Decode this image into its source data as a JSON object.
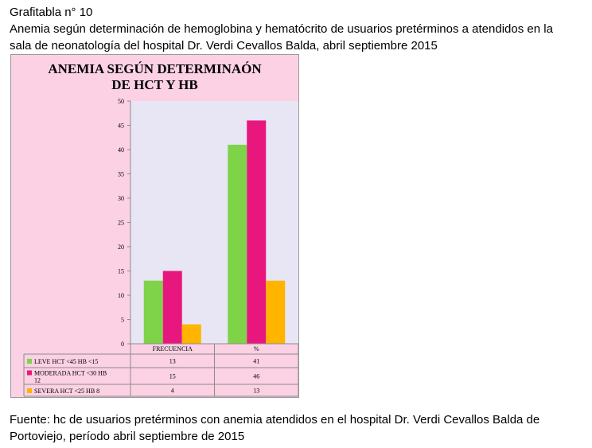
{
  "document": {
    "heading": "Grafitabla  n° 10",
    "caption_line1": "Anemia según determinación de  hemoglobina y hematócrito de usuarios pretérminos a atendidos en la",
    "caption_line2": "sala de neonatología del hospital Dr. Verdi Cevallos Balda, abril septiembre  2015",
    "source_line1": "Fuente: hc  de usuarios pretérminos con anemia atendidos en el hospital Dr. Verdi Cevallos Balda de",
    "source_line2": "Portoviejo, período abril septiembre de 2015"
  },
  "chart_data": {
    "type": "bar",
    "title_line1": "ANEMIA SEGÚN  DETERMINAÓN",
    "title_line2": "DE HCT Y HB",
    "categories": [
      "FRECUENCIA",
      "%"
    ],
    "series": [
      {
        "name": "LEVE HCT <45 HB <15",
        "legend_lines": [
          "LEVE HCT <45 HB <15"
        ],
        "values": [
          13,
          41
        ],
        "color": "#7ed348"
      },
      {
        "name": "MODERADA HCT <30 HB 12",
        "legend_lines": [
          "MODERADA HCT <30 HB",
          "12"
        ],
        "values": [
          15,
          46
        ],
        "color": "#e8177e"
      },
      {
        "name": "SEVERA HCT <25 HB 8",
        "legend_lines": [
          "SEVERA HCT <25 HB 8"
        ],
        "values": [
          4,
          13
        ],
        "color": "#ffb400"
      }
    ],
    "ylim": [
      0,
      50
    ],
    "yticks": [
      0,
      5,
      10,
      15,
      20,
      25,
      30,
      35,
      40,
      45,
      50
    ],
    "grid": false,
    "plot_background": "#e8e6f4",
    "chart_background": "#fbd1e3",
    "legend": "data-table"
  }
}
